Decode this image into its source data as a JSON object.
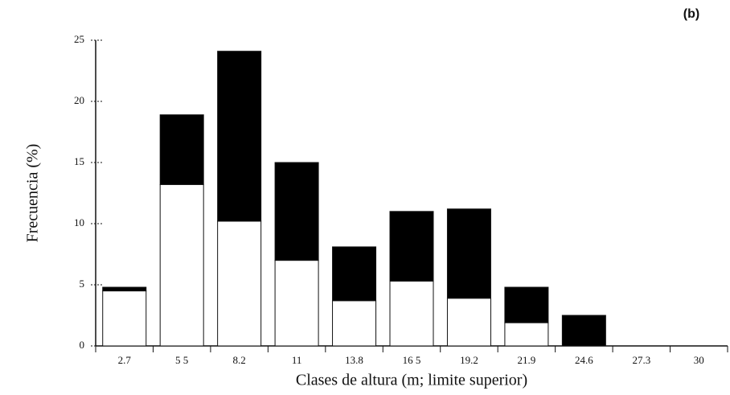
{
  "chart_data": {
    "type": "bar",
    "stacked": true,
    "annotation": "(b)",
    "xlabel": "Clases de altura (m; limite superior)",
    "ylabel": "Frecuencia (%)",
    "categories": [
      "2.7",
      "5 5",
      "8.2",
      "11",
      "13.8",
      "16 5",
      "19.2",
      "21.9",
      "24.6",
      "27.3",
      "30"
    ],
    "series": [
      {
        "color": "#ffffff",
        "values": [
          4.5,
          13.2,
          10.2,
          7.0,
          3.7,
          5.3,
          3.9,
          1.9,
          0,
          0,
          0
        ]
      },
      {
        "color": "#000000",
        "values": [
          0.3,
          5.7,
          13.9,
          8.0,
          4.4,
          5.7,
          7.3,
          2.9,
          2.5,
          0,
          0
        ]
      }
    ],
    "ylim": [
      0,
      25
    ],
    "yticks": [
      0,
      5,
      10,
      15,
      20,
      25
    ]
  }
}
